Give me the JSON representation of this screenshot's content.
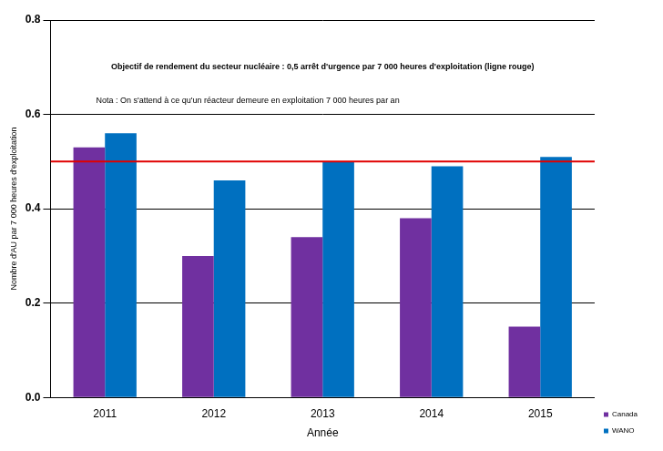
{
  "chart_data": {
    "type": "bar",
    "annotations": [
      "Objectif de rendement du secteur nucléaire : 0,5 arrêt d'urgence par 7 000 heures d'exploitation (ligne rouge)",
      "Nota : On s'attend à ce qu'un réacteur demeure en exploitation 7 000 heures par an"
    ],
    "x_label": "Année",
    "y_label": "Nombre d'AU par 7 000 heures d'exploitation",
    "categories": [
      "2011",
      "2012",
      "2013",
      "2014",
      "2015"
    ],
    "series": [
      {
        "name": "Canada",
        "color": "#7030a0",
        "values": [
          0.53,
          0.3,
          0.34,
          0.38,
          0.15
        ]
      },
      {
        "name": "WANO",
        "color": "#0070c0",
        "values": [
          0.56,
          0.46,
          0.5,
          0.49,
          0.51
        ]
      }
    ],
    "reference_line": 0.5,
    "ylim": [
      0,
      0.8
    ],
    "yticks": [
      {
        "value": 0,
        "label": "0.0"
      },
      0.2,
      0.4,
      0.6,
      0.8
    ],
    "grid": true,
    "legend": "bottom-right"
  }
}
